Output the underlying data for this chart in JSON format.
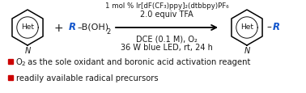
{
  "background_color": "#ffffff",
  "condition_line1": "1 mol % Ir[dF(CF₃)ppy]₂(dtbbpy)PF₆",
  "condition_line2": "2.0 equiv TFA",
  "condition_line3": "DCE (0.1 M), O₂",
  "condition_line4": "36 W blue LED, rt, 24 h",
  "bullet1_color": "#cc0000",
  "bullet2_color": "#cc0000",
  "bullet1_text1": "O",
  "bullet1_sub": "2",
  "bullet1_text2": " as the sole oxidant and boronic acid activation reagent",
  "bullet2_text": "readily available radical precursors",
  "text_color": "#1a1a1a",
  "blue_color": "#1155cc",
  "font_size_cond1": 6.2,
  "font_size_cond": 7.0,
  "font_size_bullets": 7.2,
  "font_size_ring_label": 6.5,
  "font_size_N": 7.0,
  "font_size_plus": 10.0,
  "font_size_reagent": 8.5
}
